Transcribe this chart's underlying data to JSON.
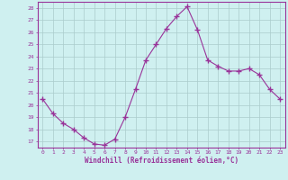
{
  "x": [
    0,
    1,
    2,
    3,
    4,
    5,
    6,
    7,
    8,
    9,
    10,
    11,
    12,
    13,
    14,
    15,
    16,
    17,
    18,
    19,
    20,
    21,
    22,
    23
  ],
  "y": [
    20.5,
    19.3,
    18.5,
    18.0,
    17.3,
    16.8,
    16.7,
    17.2,
    19.0,
    21.3,
    23.7,
    25.0,
    26.3,
    27.3,
    28.1,
    26.2,
    23.7,
    23.2,
    22.8,
    22.8,
    23.0,
    22.5,
    21.3,
    20.5
  ],
  "xlim": [
    -0.5,
    23.5
  ],
  "ylim": [
    16.5,
    28.5
  ],
  "yticks": [
    17,
    18,
    19,
    20,
    21,
    22,
    23,
    24,
    25,
    26,
    27,
    28
  ],
  "xticks": [
    0,
    1,
    2,
    3,
    4,
    5,
    6,
    7,
    8,
    9,
    10,
    11,
    12,
    13,
    14,
    15,
    16,
    17,
    18,
    19,
    20,
    21,
    22,
    23
  ],
  "xlabel": "Windchill (Refroidissement éolien,°C)",
  "line_color": "#993399",
  "marker": "+",
  "marker_size": 4,
  "bg_color": "#cff0f0",
  "grid_color": "#aacccc",
  "tick_color": "#993399",
  "spine_color": "#993399",
  "xlabel_fontsize": 5.5,
  "tick_fontsize": 4.5
}
